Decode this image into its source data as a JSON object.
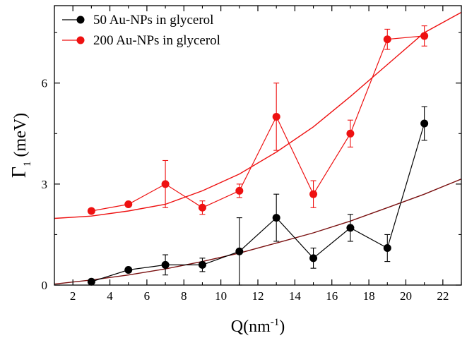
{
  "chart_data": {
    "type": "scatter",
    "xlabel": "Q(nm",
    "xlabel_sup": "-1",
    "xlabel_tail": ")",
    "ylabel": "Γ",
    "ylabel_sub": "1",
    "ylabel_tail": " (meV)",
    "xlim": [
      1,
      23
    ],
    "ylim": [
      0,
      8.3
    ],
    "xticks_labeled": [
      2,
      4,
      6,
      8,
      10,
      12,
      14,
      16,
      18,
      20,
      22
    ],
    "xticks_minor": [
      1,
      3,
      5,
      7,
      9,
      11,
      13,
      15,
      17,
      19,
      21,
      23
    ],
    "yticks_labeled": [
      0,
      3,
      6
    ],
    "yticks_minor": [
      1.5,
      4.5,
      7.5
    ],
    "legend_position": "top-left",
    "series": [
      {
        "name": "50 Au-NPs in glycerol",
        "color": "#000000",
        "x": [
          3,
          5,
          7,
          9,
          11,
          13,
          15,
          17,
          19,
          21
        ],
        "y": [
          0.1,
          0.45,
          0.6,
          0.6,
          1.0,
          2.0,
          0.8,
          1.7,
          1.1,
          4.8
        ],
        "err": [
          0.0,
          0.0,
          0.3,
          0.2,
          1.0,
          0.7,
          0.3,
          0.4,
          0.4,
          0.5
        ],
        "fit": {
          "color": "#7a1010",
          "x": [
            1,
            3,
            5,
            7,
            9,
            11,
            13,
            15,
            17,
            19,
            21,
            23
          ],
          "y": [
            0.03,
            0.15,
            0.3,
            0.48,
            0.7,
            0.95,
            1.25,
            1.55,
            1.9,
            2.3,
            2.7,
            3.15
          ]
        }
      },
      {
        "name": "200 Au-NPs in glycerol",
        "color": "#ee1111",
        "x": [
          3,
          5,
          7,
          9,
          11,
          13,
          15,
          17,
          19,
          21
        ],
        "y": [
          2.2,
          2.4,
          3.0,
          2.3,
          2.8,
          5.0,
          2.7,
          4.5,
          7.3,
          7.4
        ],
        "err": [
          0.0,
          0.0,
          0.7,
          0.2,
          0.2,
          1.0,
          0.4,
          0.4,
          0.3,
          0.3
        ],
        "fit": {
          "color": "#ee1111",
          "x": [
            1,
            3,
            5,
            7,
            9,
            11,
            13,
            15,
            17,
            19,
            21,
            23
          ],
          "y": [
            1.98,
            2.05,
            2.2,
            2.4,
            2.8,
            3.3,
            3.95,
            4.7,
            5.6,
            6.55,
            7.5,
            8.1
          ]
        }
      }
    ]
  }
}
